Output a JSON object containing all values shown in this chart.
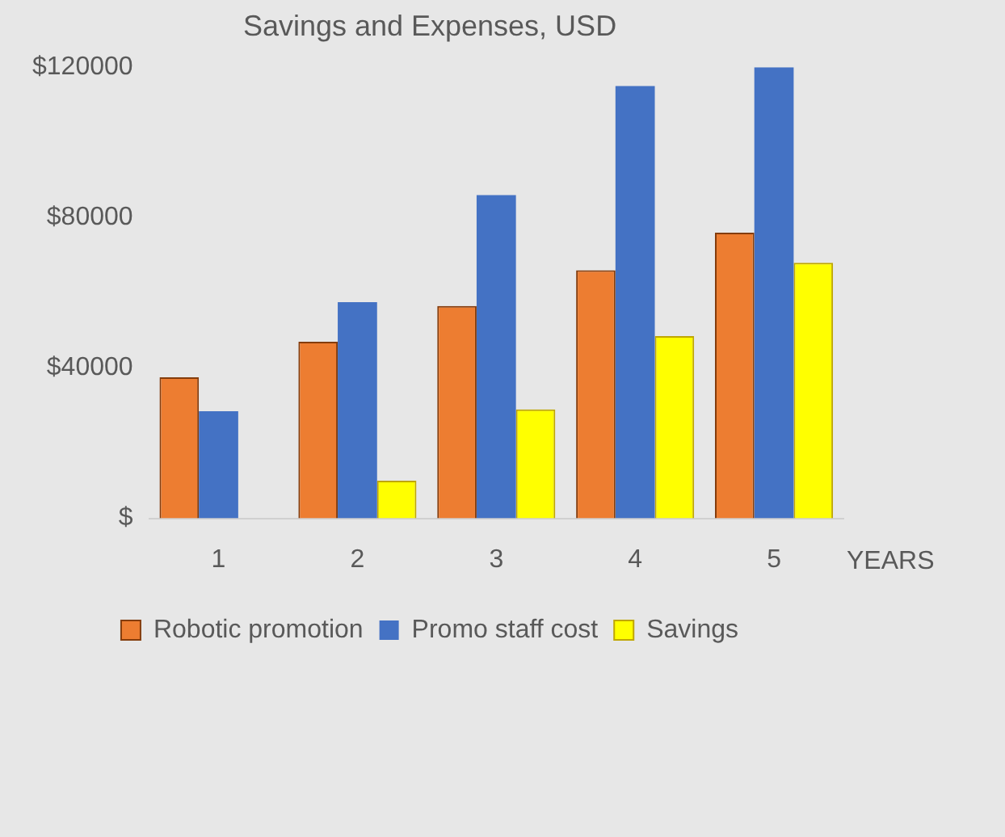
{
  "chart_data": {
    "type": "bar",
    "title": "Savings and Expenses, USD",
    "xlabel": "YEARS",
    "categories": [
      "1",
      "2",
      "3",
      "4",
      "5"
    ],
    "series": [
      {
        "name": "Robotic promotion",
        "color": "#ed7d31",
        "values": [
          37500,
          47000,
          56500,
          66000,
          76000
        ]
      },
      {
        "name": "Promo staff cost",
        "color": "#4472c4",
        "values": [
          28500,
          57500,
          86000,
          115000,
          120000
        ]
      },
      {
        "name": "Savings",
        "color": "#ffff00",
        "values": [
          0,
          10000,
          29000,
          48500,
          68000
        ]
      }
    ],
    "ylim": [
      0,
      120000
    ],
    "yticks": [
      {
        "value": 0,
        "label": "$"
      },
      {
        "value": 40000,
        "label": "$40000"
      },
      {
        "value": 80000,
        "label": "$80000"
      },
      {
        "value": 120000,
        "label": "$120000"
      }
    ],
    "grid": false,
    "legend": "bottom"
  }
}
